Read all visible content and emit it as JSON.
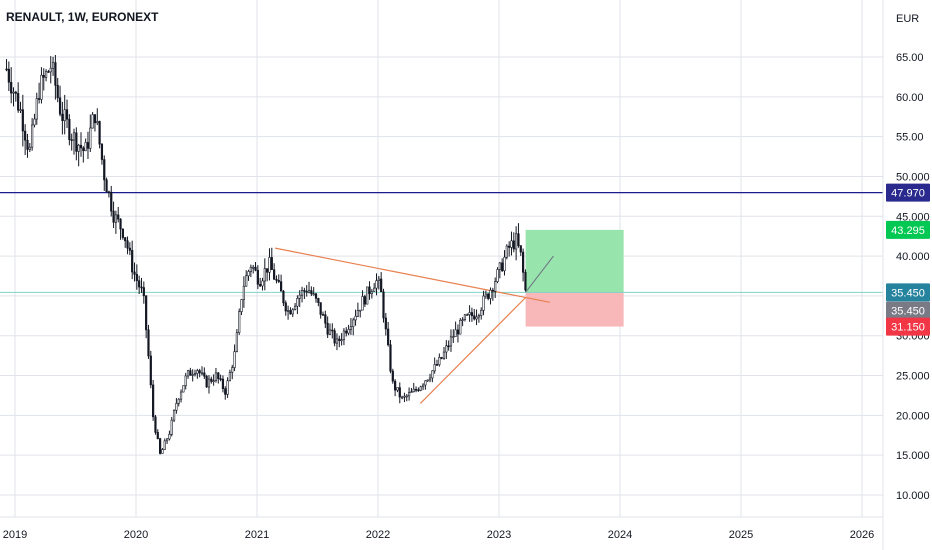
{
  "header": {
    "title": "RENAULT, 1W, EURONEXT"
  },
  "chart_data": {
    "type": "candlestick",
    "title": "RENAULT, 1W, EURONEXT",
    "currency": "EUR",
    "ylim": [
      7,
      72
    ],
    "xlim": [
      2018.93,
      2026.27
    ],
    "y_ticks": [
      "65.00",
      "60.00",
      "55.00",
      "50.000",
      "45.000",
      "40.000",
      "35.000",
      "30.000",
      "25.000",
      "20.000",
      "15.000",
      "10.000"
    ],
    "y_tick_values": [
      65,
      60,
      55,
      50,
      45,
      40,
      35,
      30,
      25,
      20,
      15,
      10
    ],
    "x_ticks": [
      "2019",
      "2020",
      "2021",
      "2022",
      "2023",
      "2024",
      "2025",
      "2026"
    ],
    "x_tick_values": [
      2019,
      2020,
      2021,
      2022,
      2023,
      2024,
      2025,
      2026
    ],
    "grid": true,
    "colors": {
      "up": "#26a69a",
      "down": "#ef5350",
      "candle": "#131722",
      "grid": "#e0e3eb",
      "trend": "#e8804f"
    },
    "path_points": [
      [
        2018.93,
        63.5
      ],
      [
        2019.05,
        58
      ],
      [
        2019.12,
        53
      ],
      [
        2019.2,
        61
      ],
      [
        2019.3,
        64
      ],
      [
        2019.38,
        58
      ],
      [
        2019.48,
        55
      ],
      [
        2019.58,
        53
      ],
      [
        2019.66,
        58
      ],
      [
        2019.74,
        50
      ],
      [
        2019.82,
        45
      ],
      [
        2019.9,
        43
      ],
      [
        2019.98,
        38
      ],
      [
        2020.06,
        35
      ],
      [
        2020.1,
        28
      ],
      [
        2020.14,
        20
      ],
      [
        2020.2,
        15
      ],
      [
        2020.28,
        18
      ],
      [
        2020.34,
        22
      ],
      [
        2020.42,
        25
      ],
      [
        2020.5,
        26
      ],
      [
        2020.58,
        24
      ],
      [
        2020.66,
        25
      ],
      [
        2020.74,
        23
      ],
      [
        2020.82,
        28
      ],
      [
        2020.88,
        36
      ],
      [
        2020.95,
        39
      ],
      [
        2021.02,
        37
      ],
      [
        2021.1,
        39
      ],
      [
        2021.18,
        36
      ],
      [
        2021.26,
        33
      ],
      [
        2021.34,
        35
      ],
      [
        2021.42,
        36
      ],
      [
        2021.5,
        34
      ],
      [
        2021.58,
        31
      ],
      [
        2021.66,
        29
      ],
      [
        2021.74,
        31
      ],
      [
        2021.82,
        33
      ],
      [
        2021.9,
        35
      ],
      [
        2021.98,
        37
      ],
      [
        2022.02,
        36
      ],
      [
        2022.06,
        31
      ],
      [
        2022.12,
        24
      ],
      [
        2022.2,
        22
      ],
      [
        2022.3,
        23
      ],
      [
        2022.42,
        25
      ],
      [
        2022.52,
        27
      ],
      [
        2022.62,
        30
      ],
      [
        2022.72,
        32
      ],
      [
        2022.82,
        33
      ],
      [
        2022.9,
        35
      ],
      [
        2023.0,
        38
      ],
      [
        2023.08,
        41
      ],
      [
        2023.14,
        42
      ],
      [
        2023.18,
        40
      ],
      [
        2023.22,
        35.45
      ]
    ],
    "lines": {
      "horizontal_level": {
        "value": 47.97,
        "label": "47.970",
        "color": "#1c1c8c"
      },
      "descending_trendline": [
        [
          2021.15,
          41
        ],
        [
          2023.42,
          34.2
        ]
      ],
      "ascending_trendline": [
        [
          2022.35,
          21.5
        ],
        [
          2023.22,
          34.8
        ]
      ],
      "projection": [
        [
          2023.22,
          35.45
        ],
        [
          2023.45,
          40
        ]
      ]
    },
    "position": {
      "x_start": 2023.22,
      "x_end": 2024.03,
      "entry": 35.45,
      "target": 43.295,
      "stop": 31.15,
      "profit_color": "#92e3a9",
      "loss_color": "#f8b4b6"
    },
    "price_badges": [
      {
        "value": 47.97,
        "label": "47.970",
        "color": "#2a2a8e"
      },
      {
        "value": 43.295,
        "label": "43.295",
        "color": "#00c853"
      },
      {
        "value": 35.45,
        "label": "35.450",
        "color": "#26839e"
      },
      {
        "value": 33.15,
        "label": "35.450",
        "color": "#787b86"
      },
      {
        "value": 31.15,
        "label": "31.150",
        "color": "#f23645"
      }
    ]
  }
}
